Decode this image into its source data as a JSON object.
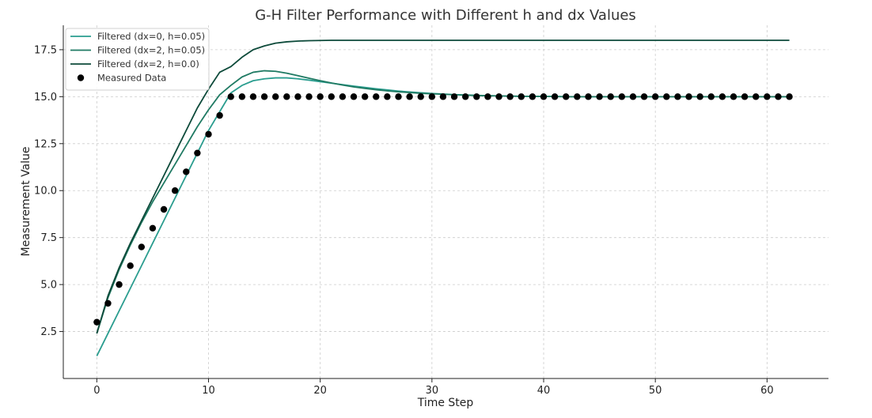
{
  "chart_data": {
    "type": "line",
    "title": "G-H Filter Performance with Different h and dx Values",
    "xlabel": "Time Step",
    "ylabel": "Measurement Value",
    "xlim": [
      -3,
      65.5
    ],
    "ylim": [
      0,
      18.8
    ],
    "xticks": [
      0,
      10,
      20,
      30,
      40,
      50,
      60
    ],
    "xtick_labels": [
      "0",
      "10",
      "20",
      "30",
      "40",
      "50",
      "60"
    ],
    "yticks": [
      2.5,
      5.0,
      7.5,
      10.0,
      12.5,
      15.0,
      17.5
    ],
    "ytick_labels": [
      "2.5",
      "5.0",
      "7.5",
      "10.0",
      "12.5",
      "15.0",
      "17.5"
    ],
    "grid": true,
    "legend_position": "top-left",
    "x": [
      0,
      1,
      2,
      3,
      4,
      5,
      6,
      7,
      8,
      9,
      10,
      11,
      12,
      13,
      14,
      15,
      16,
      17,
      18,
      19,
      20,
      21,
      22,
      23,
      24,
      25,
      26,
      27,
      28,
      29,
      30,
      31,
      32,
      33,
      34,
      35,
      36,
      37,
      38,
      39,
      40,
      41,
      42,
      43,
      44,
      45,
      46,
      47,
      48,
      49,
      50,
      51,
      52,
      53,
      54,
      55,
      56,
      57,
      58,
      59,
      60,
      61,
      62
    ],
    "series": [
      {
        "name": "Filtered (dx=0, h=0.05)",
        "kind": "line",
        "color": "#2a9d8f",
        "values": [
          1.2,
          2.4,
          3.6,
          4.8,
          6.0,
          7.2,
          8.4,
          9.6,
          10.8,
          12.0,
          13.2,
          14.2,
          15.2,
          15.6,
          15.85,
          15.95,
          16.0,
          16.0,
          15.95,
          15.88,
          15.8,
          15.72,
          15.64,
          15.56,
          15.49,
          15.42,
          15.36,
          15.3,
          15.25,
          15.21,
          15.17,
          15.14,
          15.11,
          15.09,
          15.07,
          15.05,
          15.04,
          15.03,
          15.02,
          15.02,
          15.01,
          15.01,
          15.0,
          15.0,
          15.0,
          15.0,
          15.0,
          15.0,
          15.0,
          15.0,
          15.0,
          15.0,
          15.0,
          15.0,
          15.0,
          15.0,
          15.0,
          15.0,
          15.0,
          15.0,
          15.0,
          15.0,
          15.0
        ]
      },
      {
        "name": "Filtered (dx=2, h=0.05)",
        "kind": "line",
        "color": "#1f7a63",
        "values": [
          2.4,
          4.3,
          5.8,
          7.1,
          8.3,
          9.4,
          10.4,
          11.4,
          12.4,
          13.4,
          14.3,
          15.1,
          15.6,
          16.05,
          16.3,
          16.38,
          16.35,
          16.25,
          16.12,
          15.98,
          15.85,
          15.73,
          15.62,
          15.52,
          15.44,
          15.37,
          15.31,
          15.26,
          15.22,
          15.18,
          15.15,
          15.13,
          15.1,
          15.08,
          15.06,
          15.05,
          15.04,
          15.03,
          15.02,
          15.02,
          15.01,
          15.01,
          15.0,
          15.0,
          15.0,
          15.0,
          15.0,
          15.0,
          15.0,
          15.0,
          15.0,
          15.0,
          15.0,
          15.0,
          15.0,
          15.0,
          15.0,
          15.0,
          15.0,
          15.0,
          15.0,
          15.0,
          15.0
        ]
      },
      {
        "name": "Filtered (dx=2, h=0.0)",
        "kind": "line",
        "color": "#0d4a3a",
        "values": [
          2.4,
          4.4,
          5.9,
          7.2,
          8.4,
          9.6,
          10.8,
          12.0,
          13.2,
          14.4,
          15.4,
          16.3,
          16.6,
          17.1,
          17.5,
          17.7,
          17.85,
          17.92,
          17.96,
          17.98,
          17.99,
          18.0,
          18.0,
          18.0,
          18.0,
          18.0,
          18.0,
          18.0,
          18.0,
          18.0,
          18.0,
          18.0,
          18.0,
          18.0,
          18.0,
          18.0,
          18.0,
          18.0,
          18.0,
          18.0,
          18.0,
          18.0,
          18.0,
          18.0,
          18.0,
          18.0,
          18.0,
          18.0,
          18.0,
          18.0,
          18.0,
          18.0,
          18.0,
          18.0,
          18.0,
          18.0,
          18.0,
          18.0,
          18.0,
          18.0,
          18.0,
          18.0,
          18.0
        ]
      },
      {
        "name": "Measured Data",
        "kind": "scatter",
        "color": "#000000",
        "values": [
          3,
          4,
          5,
          6,
          7,
          8,
          9,
          10,
          11,
          12,
          13,
          14,
          15,
          15,
          15,
          15,
          15,
          15,
          15,
          15,
          15,
          15,
          15,
          15,
          15,
          15,
          15,
          15,
          15,
          15,
          15,
          15,
          15,
          15,
          15,
          15,
          15,
          15,
          15,
          15,
          15,
          15,
          15,
          15,
          15,
          15,
          15,
          15,
          15,
          15,
          15,
          15,
          15,
          15,
          15,
          15,
          15,
          15,
          15,
          15,
          15,
          15,
          15
        ]
      }
    ]
  }
}
